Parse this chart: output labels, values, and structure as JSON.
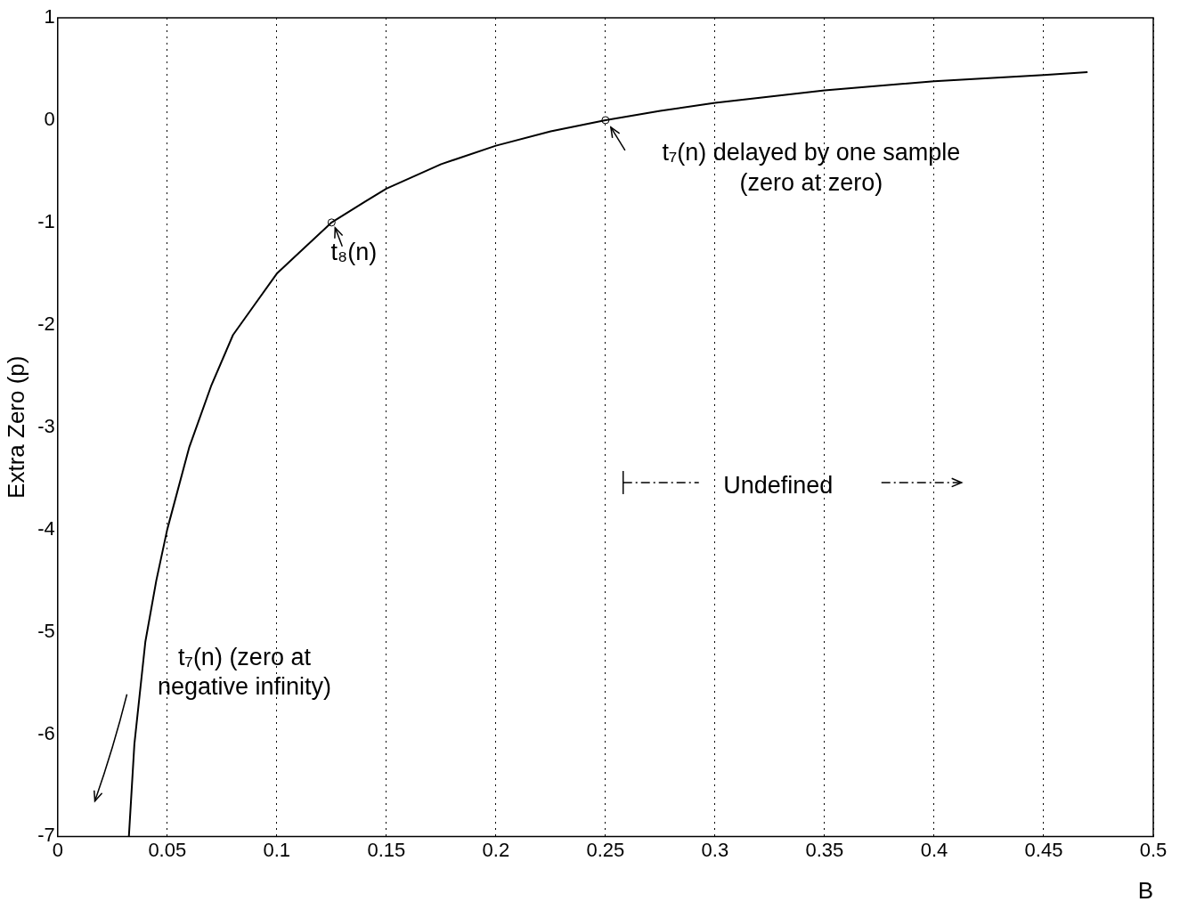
{
  "chart_data": {
    "type": "line",
    "xlabel": "B",
    "ylabel": "Extra Zero (p)",
    "xlim": [
      0,
      0.5
    ],
    "xticks": [
      0,
      0.05,
      0.1,
      0.15,
      0.2,
      0.25,
      0.3,
      0.35,
      0.4,
      0.45,
      0.5
    ],
    "ylim": [
      -7,
      1
    ],
    "yticks": [
      -7,
      -6,
      -5,
      -4,
      -3,
      -2,
      -1,
      0,
      1
    ],
    "grid": "x",
    "legend": false,
    "series": [
      {
        "color": "#000000",
        "marker": "none",
        "x": [
          0.0325,
          0.035,
          0.04,
          0.045,
          0.05,
          0.06,
          0.07,
          0.08,
          0.09,
          0.1,
          0.11,
          0.125,
          0.14,
          0.15,
          0.175,
          0.2,
          0.225,
          0.25,
          0.275,
          0.3,
          0.35,
          0.4,
          0.45,
          0.47
        ],
        "values": [
          -7,
          -6.1,
          -5.1,
          -4.5,
          -4.0,
          -3.2,
          -2.6,
          -2.1,
          -1.8,
          -1.5,
          -1.3,
          -1,
          -0.8,
          -0.67,
          -0.43,
          -0.25,
          -0.11,
          0,
          0.09,
          0.17,
          0.29,
          0.38,
          0.44,
          0.47
        ]
      },
      {
        "type": "scatter",
        "color": "#000000",
        "marker": "circle",
        "x": [
          0.125,
          0.25
        ],
        "values": [
          -1,
          0
        ]
      }
    ],
    "annotations": [
      {
        "text": "t₇(n) delayed by one sample (zero at zero)",
        "x": 0.25,
        "y": 0
      },
      {
        "text": "t₈(n)",
        "x": 0.125,
        "y": -1
      },
      "t₇(n) (zero at negative infinity)",
      "Undefined"
    ]
  }
}
